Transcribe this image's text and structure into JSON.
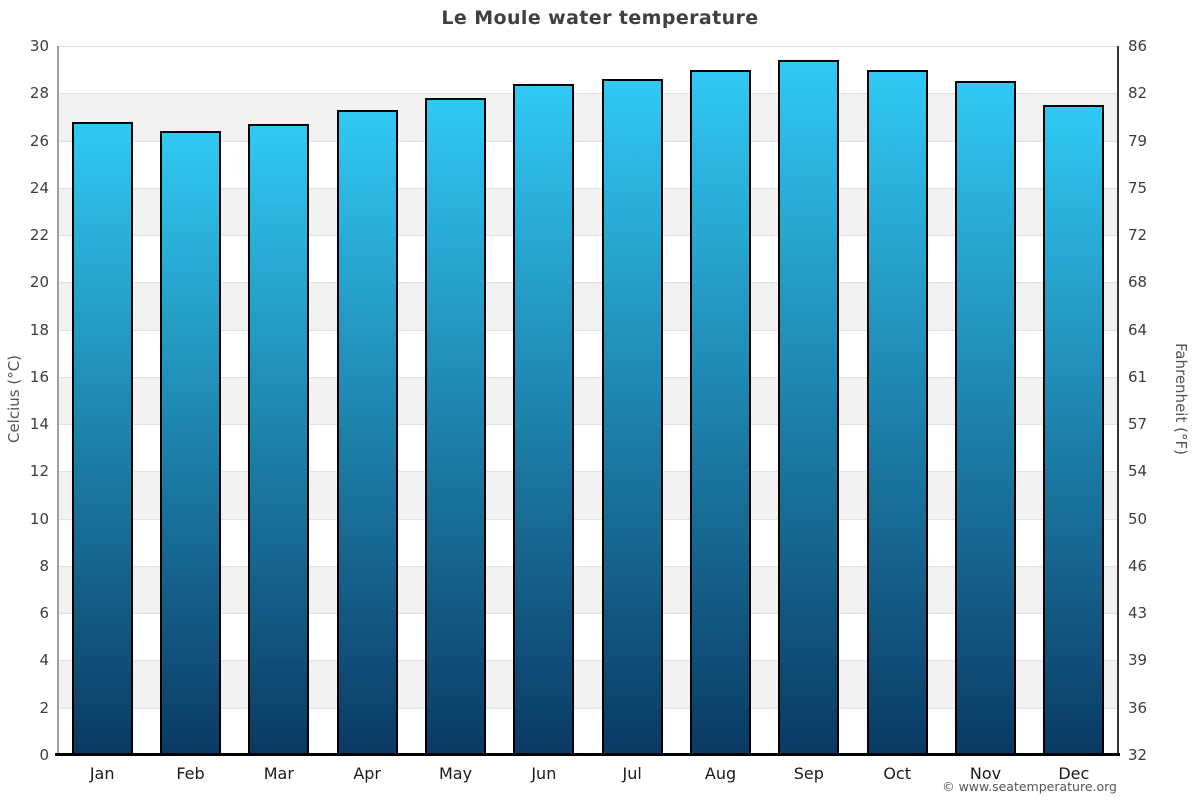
{
  "title": "Le Moule water temperature",
  "copyright": "© www.seatemperature.org",
  "axes": {
    "left_title": "Celcius (°C)",
    "right_title": "Fahrenheit (°F)"
  },
  "chart_data": {
    "type": "bar",
    "title": "Le Moule water temperature",
    "categories": [
      "Jan",
      "Feb",
      "Mar",
      "Apr",
      "May",
      "Jun",
      "Jul",
      "Aug",
      "Sep",
      "Oct",
      "Nov",
      "Dec"
    ],
    "values_celsius": [
      26.8,
      26.4,
      26.7,
      27.3,
      27.8,
      28.4,
      28.6,
      29.0,
      29.4,
      29.0,
      28.5,
      27.5
    ],
    "ylabel_left": "Celcius (°C)",
    "ylabel_right": "Fahrenheit (°F)",
    "ylim_celsius": [
      0,
      30
    ],
    "ytick_step_celsius": 2,
    "yticks_celsius": [
      30,
      28,
      26,
      24,
      22,
      20,
      18,
      16,
      14,
      12,
      10,
      8,
      6,
      4,
      2,
      0
    ],
    "yticks_fahrenheit": [
      86,
      82,
      79,
      75,
      72,
      68,
      64,
      61,
      57,
      54,
      50,
      46,
      43,
      39,
      36,
      32
    ],
    "grid": "alternating horizontal bands every 2°C",
    "legend": "none"
  },
  "colors": {
    "bar_top": "#30c9f4",
    "bar_bottom": "#0a3a63",
    "bar_border": "#000000",
    "band_gray": "#f2f2f2",
    "gridline": "#e2e2e2",
    "title_text": "#404040",
    "tick_text": "#3d3d3d",
    "axis_title_text": "#555555",
    "copyright_text": "#555555"
  }
}
